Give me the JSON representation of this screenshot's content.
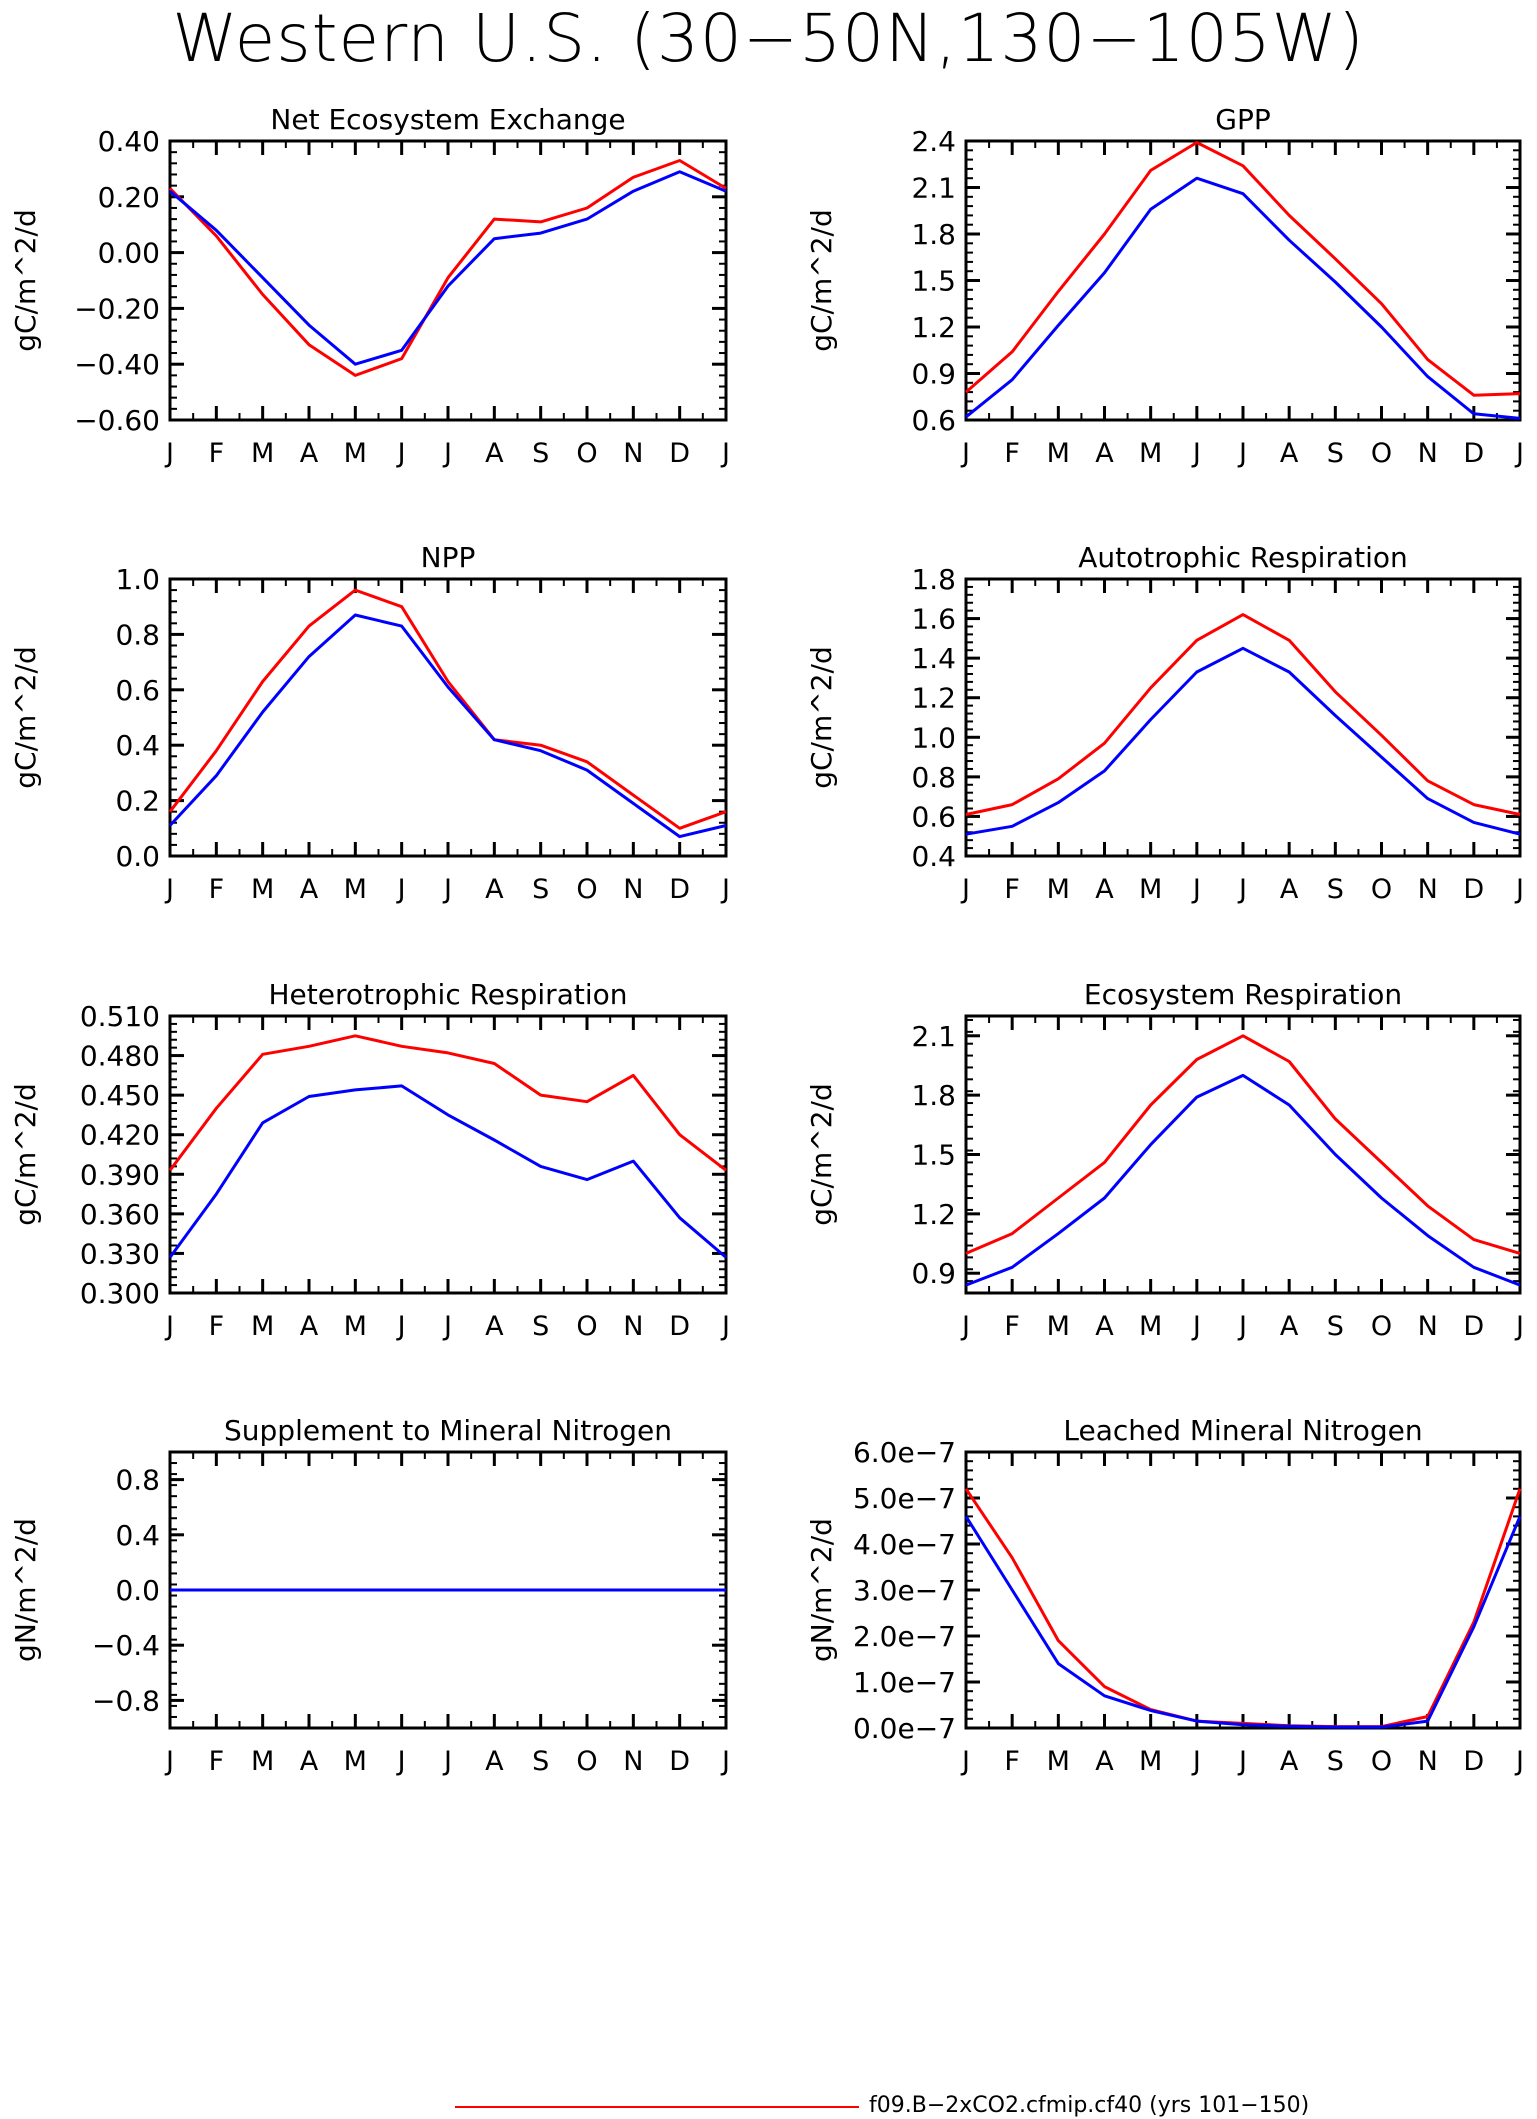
{
  "page": {
    "title": "Western U.S. (30−50N,130−105W)",
    "legend_label": "f09.B−2xCO2.cfmip.cf40 (yrs 101−150)"
  },
  "colors": {
    "series_a": "#ff0000",
    "series_b": "#0000ff",
    "axes": "#000000"
  },
  "chart_data": [
    {
      "type": "line",
      "title": "Net Ecosystem Exchange",
      "ylabel": "gC/m^2/d",
      "categories": [
        "J",
        "F",
        "M",
        "A",
        "M",
        "J",
        "J",
        "A",
        "S",
        "O",
        "N",
        "D",
        "J"
      ],
      "ylim": [
        -0.6,
        0.4
      ],
      "yticks": [
        "−0.60",
        "−0.40",
        "−0.20",
        "0.00",
        "0.20",
        "0.40"
      ],
      "ytick_values": [
        -0.6,
        -0.4,
        -0.2,
        0.0,
        0.2,
        0.4
      ],
      "series": [
        {
          "color": "#ff0000",
          "values": [
            0.23,
            0.06,
            -0.15,
            -0.33,
            -0.44,
            -0.38,
            -0.09,
            0.12,
            0.11,
            0.16,
            0.27,
            0.33,
            0.23
          ]
        },
        {
          "color": "#0000ff",
          "values": [
            0.22,
            0.08,
            -0.09,
            -0.26,
            -0.4,
            -0.35,
            -0.12,
            0.05,
            0.07,
            0.12,
            0.22,
            0.29,
            0.22
          ]
        }
      ]
    },
    {
      "type": "line",
      "title": "GPP",
      "ylabel": "gC/m^2/d",
      "categories": [
        "J",
        "F",
        "M",
        "A",
        "M",
        "J",
        "J",
        "A",
        "S",
        "O",
        "N",
        "D",
        "J"
      ],
      "ylim": [
        0.6,
        2.4
      ],
      "yticks": [
        "0.6",
        "0.9",
        "1.2",
        "1.5",
        "1.8",
        "2.1",
        "2.4"
      ],
      "ytick_values": [
        0.6,
        0.9,
        1.2,
        1.5,
        1.8,
        2.1,
        2.4
      ],
      "series": [
        {
          "color": "#ff0000",
          "values": [
            0.78,
            1.04,
            1.43,
            1.8,
            2.21,
            2.39,
            2.24,
            1.92,
            1.64,
            1.35,
            0.99,
            0.76,
            0.77
          ]
        },
        {
          "color": "#0000ff",
          "values": [
            0.62,
            0.86,
            1.21,
            1.55,
            1.96,
            2.16,
            2.06,
            1.76,
            1.49,
            1.2,
            0.88,
            0.64,
            0.61
          ]
        }
      ]
    },
    {
      "type": "line",
      "title": "NPP",
      "ylabel": "gC/m^2/d",
      "categories": [
        "J",
        "F",
        "M",
        "A",
        "M",
        "J",
        "J",
        "A",
        "S",
        "O",
        "N",
        "D",
        "J"
      ],
      "ylim": [
        0.0,
        1.0
      ],
      "yticks": [
        "0.0",
        "0.2",
        "0.4",
        "0.6",
        "0.8",
        "1.0"
      ],
      "ytick_values": [
        0.0,
        0.2,
        0.4,
        0.6,
        0.8,
        1.0
      ],
      "series": [
        {
          "color": "#ff0000",
          "values": [
            0.16,
            0.38,
            0.63,
            0.83,
            0.96,
            0.9,
            0.63,
            0.42,
            0.4,
            0.34,
            0.22,
            0.1,
            0.16
          ]
        },
        {
          "color": "#0000ff",
          "values": [
            0.11,
            0.29,
            0.52,
            0.72,
            0.87,
            0.83,
            0.61,
            0.42,
            0.38,
            0.31,
            0.19,
            0.07,
            0.11
          ]
        }
      ]
    },
    {
      "type": "line",
      "title": "Autotrophic Respiration",
      "ylabel": "gC/m^2/d",
      "categories": [
        "J",
        "F",
        "M",
        "A",
        "M",
        "J",
        "J",
        "A",
        "S",
        "O",
        "N",
        "D",
        "J"
      ],
      "ylim": [
        0.4,
        1.8
      ],
      "yticks": [
        "0.4",
        "0.6",
        "0.8",
        "1.0",
        "1.2",
        "1.4",
        "1.6",
        "1.8"
      ],
      "ytick_values": [
        0.4,
        0.6,
        0.8,
        1.0,
        1.2,
        1.4,
        1.6,
        1.8
      ],
      "series": [
        {
          "color": "#ff0000",
          "values": [
            0.61,
            0.66,
            0.79,
            0.97,
            1.25,
            1.49,
            1.62,
            1.49,
            1.23,
            1.01,
            0.78,
            0.66,
            0.61
          ]
        },
        {
          "color": "#0000ff",
          "values": [
            0.51,
            0.55,
            0.67,
            0.83,
            1.09,
            1.33,
            1.45,
            1.33,
            1.11,
            0.9,
            0.69,
            0.57,
            0.51
          ]
        }
      ]
    },
    {
      "type": "line",
      "title": "Heterotrophic Respiration",
      "ylabel": "gC/m^2/d",
      "categories": [
        "J",
        "F",
        "M",
        "A",
        "M",
        "J",
        "J",
        "A",
        "S",
        "O",
        "N",
        "D",
        "J"
      ],
      "ylim": [
        0.3,
        0.51
      ],
      "yticks": [
        "0.300",
        "0.330",
        "0.360",
        "0.390",
        "0.420",
        "0.450",
        "0.480",
        "0.510"
      ],
      "ytick_values": [
        0.3,
        0.33,
        0.36,
        0.39,
        0.42,
        0.45,
        0.48,
        0.51
      ],
      "series": [
        {
          "color": "#ff0000",
          "values": [
            0.393,
            0.44,
            0.481,
            0.487,
            0.495,
            0.487,
            0.482,
            0.474,
            0.45,
            0.445,
            0.465,
            0.42,
            0.393
          ]
        },
        {
          "color": "#0000ff",
          "values": [
            0.327,
            0.375,
            0.429,
            0.449,
            0.454,
            0.457,
            0.435,
            0.416,
            0.396,
            0.386,
            0.4,
            0.357,
            0.327
          ]
        }
      ]
    },
    {
      "type": "line",
      "title": "Ecosystem Respiration",
      "ylabel": "gC/m^2/d",
      "categories": [
        "J",
        "F",
        "M",
        "A",
        "M",
        "J",
        "J",
        "A",
        "S",
        "O",
        "N",
        "D",
        "J"
      ],
      "ylim": [
        0.8,
        2.2
      ],
      "yticks": [
        "0.9",
        "1.2",
        "1.5",
        "1.8",
        "2.1"
      ],
      "ytick_values": [
        0.9,
        1.2,
        1.5,
        1.8,
        2.1
      ],
      "series": [
        {
          "color": "#ff0000",
          "values": [
            1.0,
            1.1,
            1.28,
            1.46,
            1.75,
            1.98,
            2.1,
            1.97,
            1.68,
            1.46,
            1.24,
            1.07,
            1.0
          ]
        },
        {
          "color": "#0000ff",
          "values": [
            0.84,
            0.93,
            1.1,
            1.28,
            1.55,
            1.79,
            1.9,
            1.75,
            1.5,
            1.28,
            1.09,
            0.93,
            0.84
          ]
        }
      ]
    },
    {
      "type": "line",
      "title": "Supplement to Mineral Nitrogen",
      "ylabel": "gN/m^2/d",
      "categories": [
        "J",
        "F",
        "M",
        "A",
        "M",
        "J",
        "J",
        "A",
        "S",
        "O",
        "N",
        "D",
        "J"
      ],
      "ylim": [
        -1.0,
        1.0
      ],
      "yticks": [
        "−0.8",
        "−0.4",
        "0.0",
        "0.4",
        "0.8"
      ],
      "ytick_values": [
        -0.8,
        -0.4,
        0.0,
        0.4,
        0.8
      ],
      "series": [
        {
          "color": "#ff0000",
          "values": [
            0,
            0,
            0,
            0,
            0,
            0,
            0,
            0,
            0,
            0,
            0,
            0,
            0
          ]
        },
        {
          "color": "#0000ff",
          "values": [
            0,
            0,
            0,
            0,
            0,
            0,
            0,
            0,
            0,
            0,
            0,
            0,
            0
          ]
        }
      ]
    },
    {
      "type": "line",
      "title": "Leached Mineral Nitrogen",
      "ylabel": "gN/m^2/d",
      "categories": [
        "J",
        "F",
        "M",
        "A",
        "M",
        "J",
        "J",
        "A",
        "S",
        "O",
        "N",
        "D",
        "J"
      ],
      "ylim": [
        0,
        6e-07
      ],
      "yticks": [
        "0.0e−7",
        "1.0e−7",
        "2.0e−7",
        "3.0e−7",
        "4.0e−7",
        "5.0e−7",
        "6.0e−7"
      ],
      "ytick_values": [
        0,
        1e-07,
        2e-07,
        3e-07,
        4e-07,
        5e-07,
        6e-07
      ],
      "series": [
        {
          "color": "#ff0000",
          "values": [
            5.2e-07,
            3.7e-07,
            1.9e-07,
            9e-08,
            4e-08,
            1.5e-08,
            1e-08,
            5e-09,
            3e-09,
            3e-09,
            2.5e-08,
            2.3e-07,
            5.2e-07
          ]
        },
        {
          "color": "#0000ff",
          "values": [
            4.6e-07,
            3e-07,
            1.4e-07,
            7e-08,
            3.8e-08,
            1.5e-08,
            7e-09,
            4e-09,
            2e-09,
            2e-09,
            1.5e-08,
            2.2e-07,
            4.6e-07
          ]
        }
      ]
    }
  ]
}
